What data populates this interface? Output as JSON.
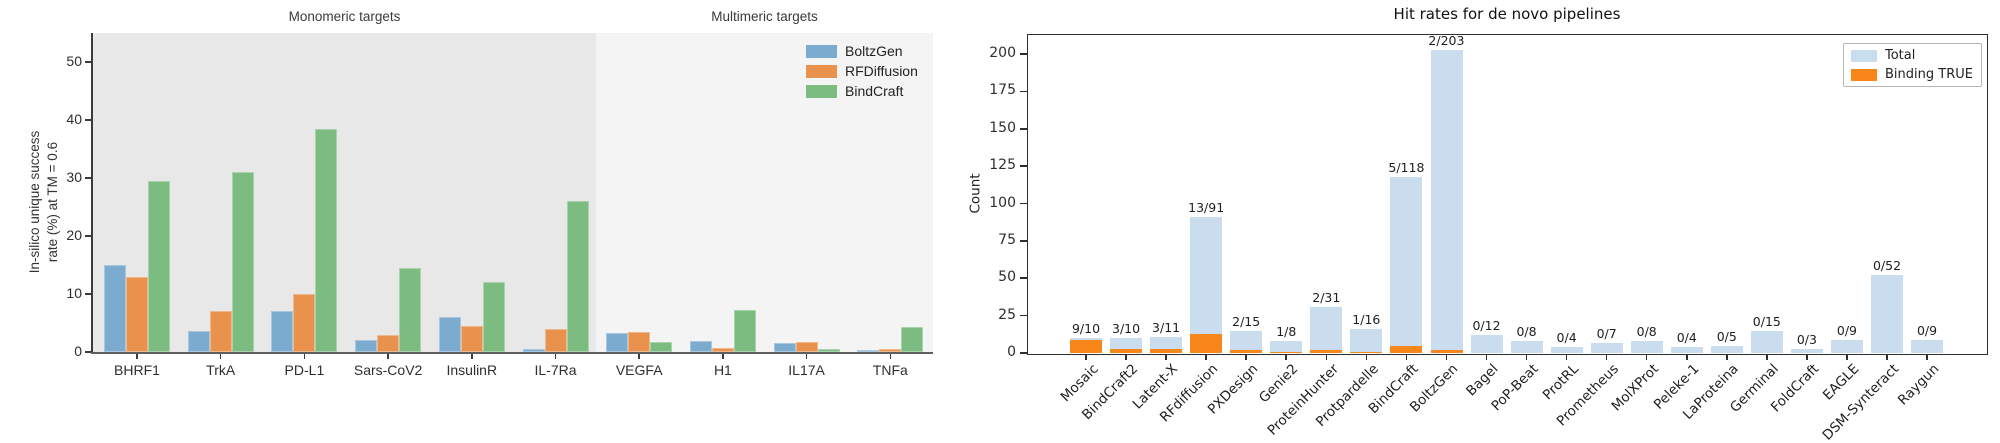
{
  "chart_data": [
    {
      "type": "bar",
      "panel": "left",
      "section_titles": [
        "Monomeric targets",
        "Multimeric targets"
      ],
      "section_split_index": 6,
      "ylabel_lines": [
        "In-silico unique success",
        "rate (%) at TM = 0.6"
      ],
      "ylabel": "In-silico unique success rate (%) at TM = 0.6",
      "yticks": [
        0,
        10,
        20,
        30,
        40,
        50
      ],
      "ylim": [
        0,
        55
      ],
      "grid": false,
      "legend_position": "upper right",
      "band_colors": [
        "#e8e8e8",
        "#f4f4f4"
      ],
      "categories": [
        "BHRF1",
        "TrkA",
        "PD-L1",
        "Sars-CoV2",
        "InsulinR",
        "IL-7Ra",
        "VEGFA",
        "H1",
        "IL17A",
        "TNFa"
      ],
      "series": [
        {
          "name": "BoltzGen",
          "color": "#7babcf",
          "values": [
            15,
            3.7,
            7,
            2,
            6,
            0.5,
            3.3,
            1.9,
            1.5,
            0.4
          ]
        },
        {
          "name": "RFDiffusion",
          "color": "#e8924d",
          "values": [
            13,
            7,
            10,
            3,
            4.5,
            4,
            3.5,
            0.7,
            1.7,
            0.5
          ]
        },
        {
          "name": "BindCraft",
          "color": "#7cbc80",
          "values": [
            29.5,
            31,
            38.5,
            14.5,
            12,
            26,
            1.8,
            7.2,
            0.5,
            4.3
          ]
        }
      ]
    },
    {
      "type": "bar",
      "panel": "right",
      "title": "Hit rates for de novo pipelines",
      "ylabel": "Count",
      "yticks": [
        0,
        25,
        50,
        75,
        100,
        125,
        150,
        175,
        200
      ],
      "ylim": [
        0,
        212
      ],
      "grid": false,
      "overlaid": true,
      "legend_position": "upper right",
      "categories": [
        "Mosaic",
        "BindCraft2",
        "Latent-X",
        "RFdiffusion",
        "PXDesign",
        "Genie2",
        "ProteinHunter",
        "Protpardelle",
        "BindCraft",
        "BoltzGen",
        "Bagel",
        "PoP-Beat",
        "ProtRL",
        "Prometheus",
        "MolXProt",
        "Peleke-1",
        "LaProteina",
        "Germinal",
        "FoldCraft",
        "EAGLE",
        "DSM-Synteract",
        "Raygun"
      ],
      "series": [
        {
          "name": "Total",
          "color": "#c9ddee",
          "values": [
            10,
            10,
            11,
            91,
            15,
            8,
            31,
            16,
            118,
            203,
            12,
            8,
            4,
            7,
            8,
            4,
            5,
            15,
            3,
            9,
            52,
            9
          ]
        },
        {
          "name": "Binding TRUE",
          "color": "#f8861a",
          "values": [
            9,
            3,
            3,
            13,
            2,
            1,
            2,
            1,
            5,
            2,
            0,
            0,
            0,
            0,
            0,
            0,
            0,
            0,
            0,
            0,
            0,
            0
          ]
        }
      ],
      "bar_labels": [
        "9/10",
        "3/10",
        "3/11",
        "13/91",
        "2/15",
        "1/8",
        "2/31",
        "1/16",
        "5/118",
        "2/203",
        "0/12",
        "0/8",
        "0/4",
        "0/7",
        "0/8",
        "0/4",
        "0/5",
        "0/15",
        "0/3",
        "0/9",
        "0/52",
        "0/9"
      ]
    }
  ]
}
